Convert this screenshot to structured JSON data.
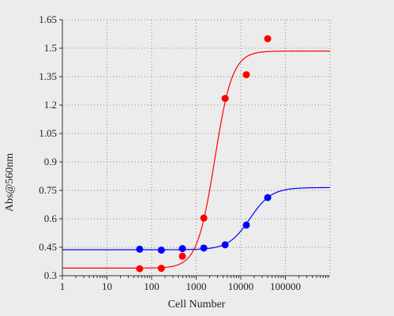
{
  "chart_data": {
    "type": "scatter",
    "title": "",
    "xlabel": "Cell Number",
    "ylabel": "Abs@560nm",
    "x_scale": "log",
    "xlim": [
      1,
      1000000
    ],
    "ylim": [
      0.3,
      1.65
    ],
    "x_ticks": [
      1,
      10,
      100,
      1000,
      10000,
      100000
    ],
    "x_tick_labels": [
      "1",
      "10",
      "100",
      "1000",
      "10000",
      "100000"
    ],
    "y_ticks": [
      0.3,
      0.45,
      0.6,
      0.75,
      0.9,
      1.05,
      1.2,
      1.35,
      1.5,
      1.65
    ],
    "y_tick_labels": [
      "0.3",
      "0.45",
      "0.6",
      "0.75",
      "0.9",
      "1.05",
      "1.2",
      "1.35",
      "1.5",
      "1.65"
    ],
    "grid": true,
    "series": [
      {
        "color": "#ff0000",
        "points": [
          [
            54,
            0.337
          ],
          [
            165,
            0.339
          ],
          [
            490,
            0.403
          ],
          [
            1480,
            0.604
          ],
          [
            4450,
            1.235
          ],
          [
            13300,
            1.36
          ],
          [
            40000,
            1.55
          ]
        ],
        "fit": {
          "bottom": 0.34,
          "top": 1.485,
          "ec50": 2600,
          "hill": 2.2
        }
      },
      {
        "color": "#0000ff",
        "points": [
          [
            54,
            0.44
          ],
          [
            165,
            0.435
          ],
          [
            490,
            0.443
          ],
          [
            1480,
            0.446
          ],
          [
            4450,
            0.463
          ],
          [
            13300,
            0.567
          ],
          [
            40000,
            0.712
          ]
        ],
        "fit": {
          "bottom": 0.437,
          "top": 0.765,
          "ec50": 16000,
          "hill": 1.8
        }
      }
    ]
  }
}
